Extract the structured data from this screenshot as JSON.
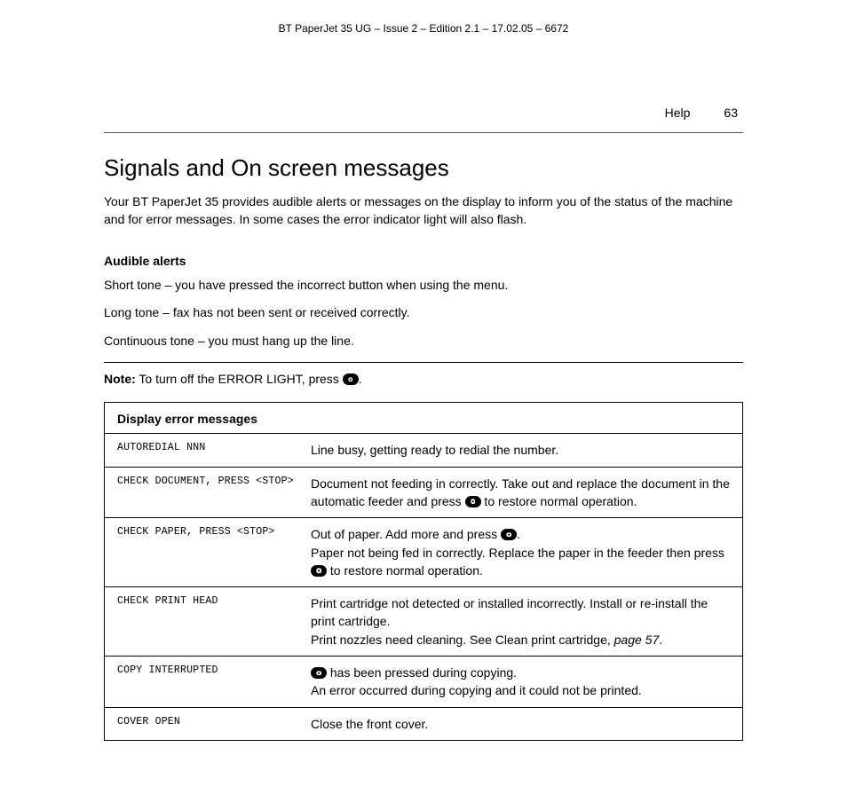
{
  "doc_header": "BT PaperJet 35 UG – Issue 2 – Edition 2.1 – 17.02.05 – 6672",
  "page_section": "Help",
  "page_number": "63",
  "title": "Signals and On screen messages",
  "intro": "Your BT PaperJet 35 provides audible alerts or messages on the display to inform you of the status of the machine and for error messages. In some cases the error indicator light will also flash.",
  "audible_heading": "Audible alerts",
  "alerts": {
    "short": "Short tone – you have pressed the incorrect button when using the menu.",
    "long": "Long tone – fax has not been sent or received correctly.",
    "cont": "Continuous tone – you must hang up the line."
  },
  "note_label": "Note:",
  "note_before": " To turn off the ERROR LIGHT, press ",
  "note_after": ".",
  "table_heading": "Display error messages",
  "rows": {
    "r1": {
      "code": "AUTOREDIAL NNN",
      "desc": "Line busy, getting ready to redial the number."
    },
    "r2": {
      "code": "CHECK DOCUMENT, PRESS <STOP>",
      "d1": "Document not feeding in correctly. Take out and replace the document in the automatic feeder and press ",
      "d2": " to restore normal operation."
    },
    "r3": {
      "code": "CHECK PAPER, PRESS <STOP>",
      "d1": "Out of paper. Add more and press ",
      "d2": ".",
      "d3": "Paper not being fed in correctly. Replace the paper in the feeder then press ",
      "d4": " to restore normal operation."
    },
    "r4": {
      "code": "CHECK PRINT HEAD",
      "d1": "Print cartridge not detected or installed incorrectly. Install or re-install the print cartridge.",
      "d2": "Print nozzles need cleaning. See Clean print cartridge, ",
      "d3": "page 57",
      "d4": "."
    },
    "r5": {
      "code": "COPY INTERRUPTED",
      "d1": " has been pressed during copying.",
      "d2": "An error occurred during copying and it could not be printed."
    },
    "r6": {
      "code": "COVER OPEN",
      "desc": "Close the front cover."
    }
  }
}
